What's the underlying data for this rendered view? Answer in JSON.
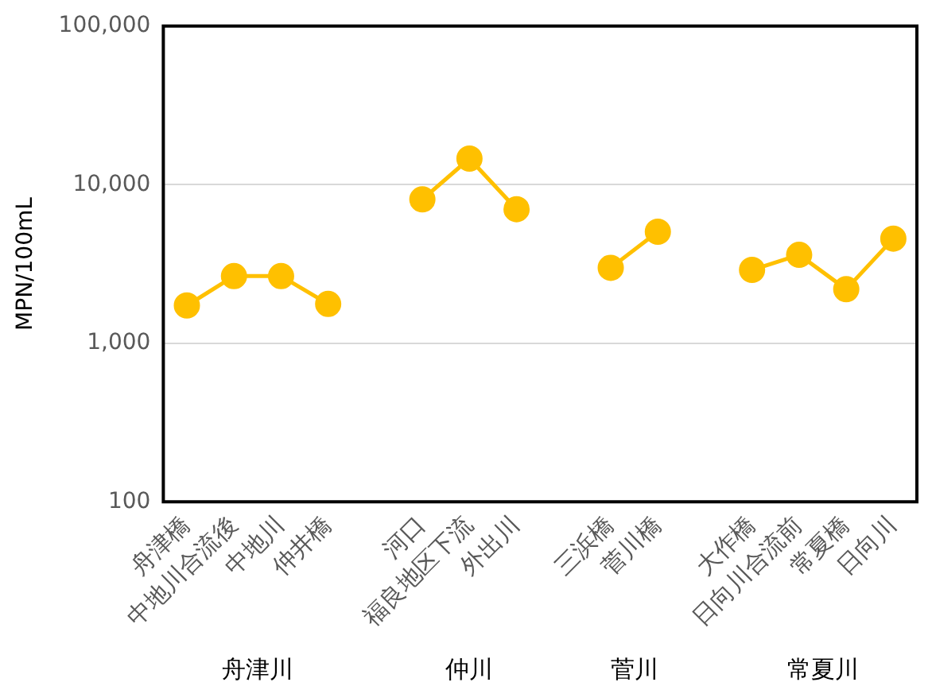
{
  "chart_data": {
    "type": "line",
    "ylabel": "MPN/100mL",
    "categories": [
      "舟津橋",
      "中地川合流後",
      "中地川",
      "仲井橋",
      null,
      "河口",
      "福良地区下流",
      "外出川",
      null,
      "三浜橋",
      "菅川橋",
      null,
      "大作橋",
      "日向川合流前",
      "常夏橋",
      "日向川"
    ],
    "series": [
      {
        "color": "#ffc000",
        "values": [
          1730,
          2650,
          2650,
          1770,
          null,
          8070,
          14600,
          7000,
          null,
          2990,
          5050,
          null,
          2900,
          3610,
          2190,
          4570
        ]
      }
    ],
    "log": "y",
    "ylim": [
      100,
      100000
    ],
    "yticks": [
      {
        "value": 100,
        "label": "100"
      },
      {
        "value": 1000,
        "label": "1,000"
      },
      {
        "value": 10000,
        "label": "10,000"
      },
      {
        "value": 100000,
        "label": "100,000"
      }
    ],
    "grid": "y",
    "marker": "circle",
    "line_style": "solid",
    "legend": false,
    "annotations": [
      "舟津川",
      "仲川",
      "菅川",
      "常夏川"
    ]
  }
}
